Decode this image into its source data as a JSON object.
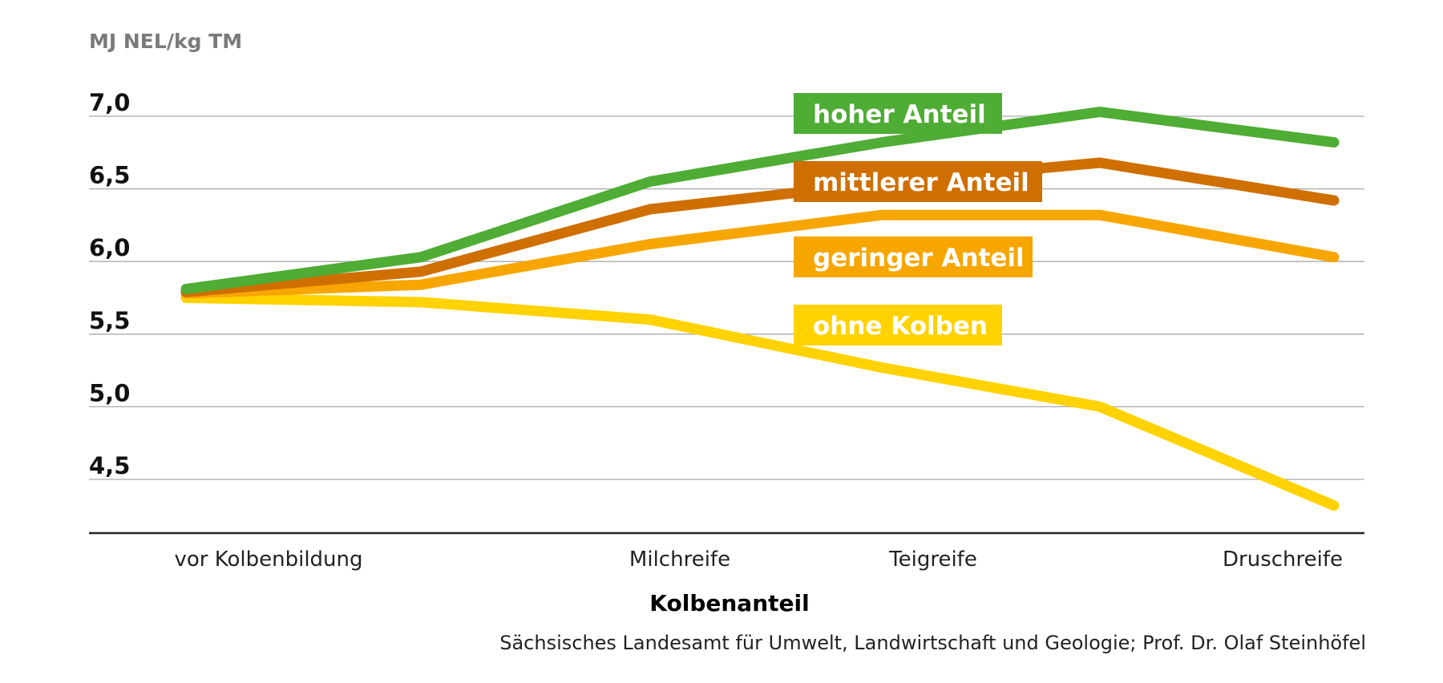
{
  "chart_data": {
    "type": "line",
    "ylabel": "MJ NEL/kg TM",
    "xlabel": "Kolbenanteil",
    "ylim": [
      4.1,
      7.1
    ],
    "y_ticks": [
      7.0,
      6.5,
      6.0,
      5.5,
      5.0,
      4.5
    ],
    "y_tick_labels": [
      "7,0",
      "6,5",
      "6,0",
      "5,5",
      "5,0",
      "4,5"
    ],
    "x_tick_labels": [
      "vor Kolbenbildung",
      "Milchreife",
      "Teigreife",
      "Druschreife"
    ],
    "grid": true,
    "series": [
      {
        "name": "hoher Anteil",
        "color": "#4fac35",
        "values": [
          5.81,
          6.03,
          6.55,
          6.82,
          7.03,
          6.82
        ]
      },
      {
        "name": "mittlerer Anteil",
        "color": "#cf6f00",
        "values": [
          5.79,
          5.93,
          6.36,
          6.54,
          6.68,
          6.42
        ]
      },
      {
        "name": "geringer Anteil",
        "color": "#f7a600",
        "values": [
          5.78,
          5.84,
          6.12,
          6.32,
          6.32,
          6.03
        ]
      },
      {
        "name": "ohne Kolben",
        "color": "#ffd200",
        "values": [
          5.75,
          5.72,
          5.6,
          5.27,
          5.0,
          4.32
        ]
      }
    ],
    "source": "Sächsisches Landesamt für Umwelt, Landwirtschaft und Geologie; Prof. Dr. Olaf Steinhöfel"
  }
}
